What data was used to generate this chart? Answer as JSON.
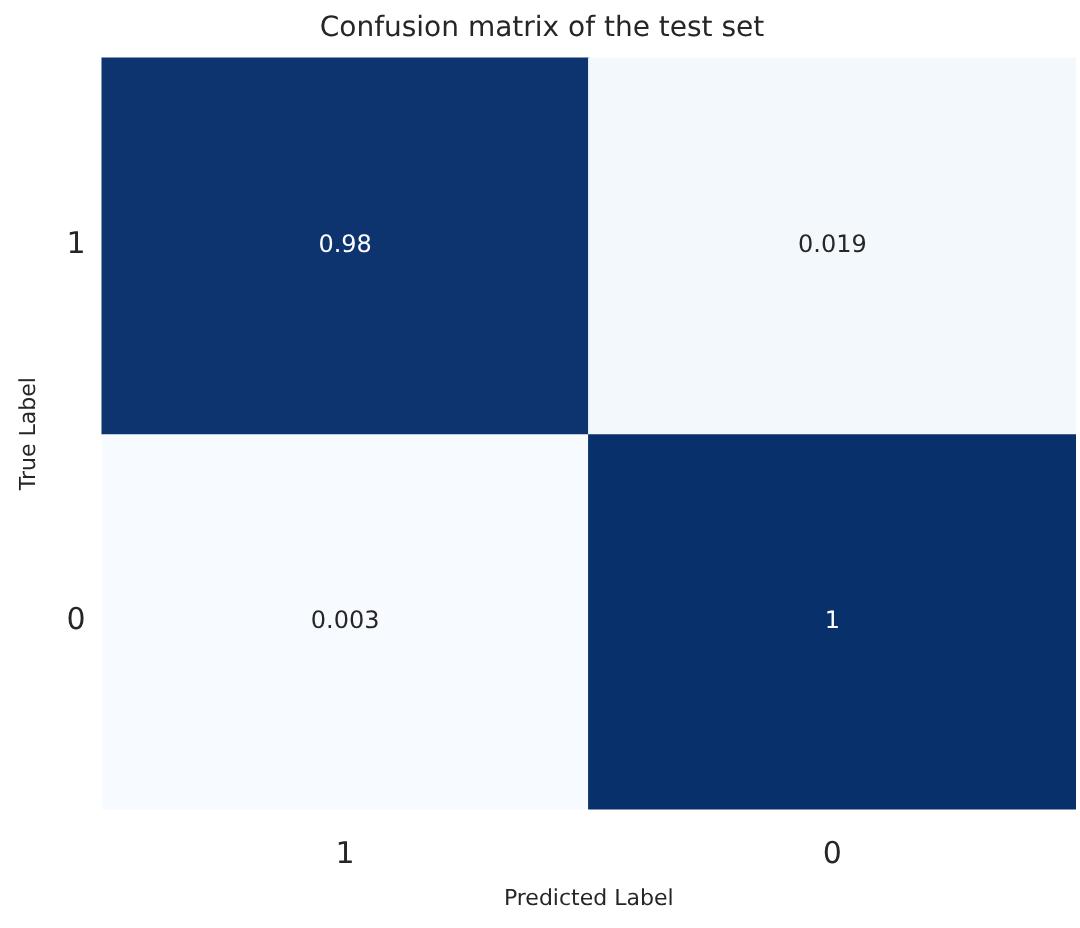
{
  "chart_data": {
    "type": "heatmap",
    "title": "Confusion matrix of the test set",
    "xlabel": "Predicted Label",
    "ylabel": "True Label",
    "categories": [
      "1",
      "0"
    ],
    "y_categories": [
      "1",
      "0"
    ],
    "cells": [
      [
        0.98,
        0.019
      ],
      [
        0.003,
        1
      ]
    ],
    "data_labels": true,
    "grid": false,
    "legend": false
  }
}
